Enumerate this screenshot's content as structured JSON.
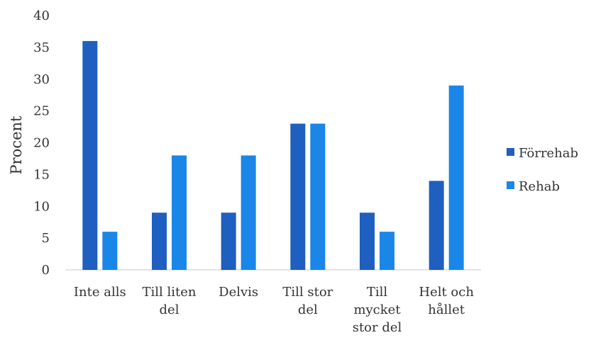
{
  "chart_data": {
    "type": "bar",
    "title": "",
    "xlabel": "",
    "ylabel": "Procent",
    "ylim": [
      0,
      40
    ],
    "yticks": [
      0,
      5,
      10,
      15,
      20,
      25,
      30,
      35,
      40
    ],
    "grid": false,
    "legend_position": "right",
    "categories": [
      [
        "Inte alls"
      ],
      [
        "Till liten",
        "del"
      ],
      [
        "Delvis"
      ],
      [
        "Till stor",
        "del"
      ],
      [
        "Till",
        "mycket",
        "stor del"
      ],
      [
        "Helt och",
        "hållet"
      ]
    ],
    "series": [
      {
        "name": "Förrehab",
        "color": "#1f5fbf",
        "values": [
          36,
          9,
          9,
          23,
          9,
          14
        ]
      },
      {
        "name": "Rehab",
        "color": "#1a86e8",
        "values": [
          6,
          18,
          18,
          23,
          6,
          29
        ]
      }
    ]
  }
}
